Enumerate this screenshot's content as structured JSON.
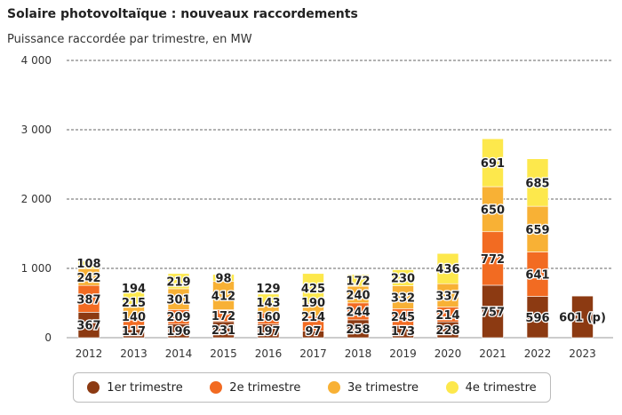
{
  "chart_data": {
    "type": "bar",
    "stacked": true,
    "title": "Solaire photovoltaïque : nouveaux raccordements",
    "subtitle": "Puissance raccordée par trimestre, en MW",
    "categories": [
      "2012",
      "2013",
      "2014",
      "2015",
      "2016",
      "2017",
      "2018",
      "2019",
      "2020",
      "2021",
      "2022",
      "2023"
    ],
    "ylim": [
      0,
      4000
    ],
    "yticks": [
      {
        "v": 0,
        "label": "0"
      },
      {
        "v": 1000,
        "label": "1 000"
      },
      {
        "v": 2000,
        "label": "2 000"
      },
      {
        "v": 3000,
        "label": "3 000"
      },
      {
        "v": 4000,
        "label": "4 000"
      }
    ],
    "grid": true,
    "legend_position": "bottom",
    "series": [
      {
        "name": "1er trimestre",
        "color": "#8c3a12",
        "values": [
          367,
          117,
          196,
          231,
          197,
          97,
          258,
          173,
          228,
          757,
          596,
          601
        ],
        "labels": [
          "367",
          "117",
          "196",
          "231",
          "197",
          "97",
          "258",
          "173",
          "228",
          "757",
          "596",
          "601 (p)"
        ]
      },
      {
        "name": "2e trimestre",
        "color": "#f26b22",
        "values": [
          387,
          140,
          209,
          172,
          160,
          214,
          244,
          245,
          214,
          772,
          641,
          null
        ],
        "labels": [
          "387",
          "140",
          "209",
          "172",
          "160",
          "214",
          "244",
          "245",
          "214",
          "772",
          "641",
          ""
        ]
      },
      {
        "name": "3e trimestre",
        "color": "#f8b135",
        "values": [
          242,
          215,
          301,
          412,
          143,
          190,
          240,
          332,
          337,
          650,
          659,
          null
        ],
        "labels": [
          "242",
          "215",
          "301",
          "412",
          "143",
          "190",
          "240",
          "332",
          "337",
          "650",
          "659",
          ""
        ]
      },
      {
        "name": "4e trimestre",
        "color": "#fde84c",
        "values": [
          108,
          194,
          219,
          98,
          129,
          425,
          172,
          230,
          436,
          691,
          685,
          null
        ],
        "labels": [
          "108",
          "194",
          "219",
          "98",
          "129",
          "425",
          "172",
          "230",
          "436",
          "691",
          "685",
          ""
        ]
      }
    ]
  }
}
